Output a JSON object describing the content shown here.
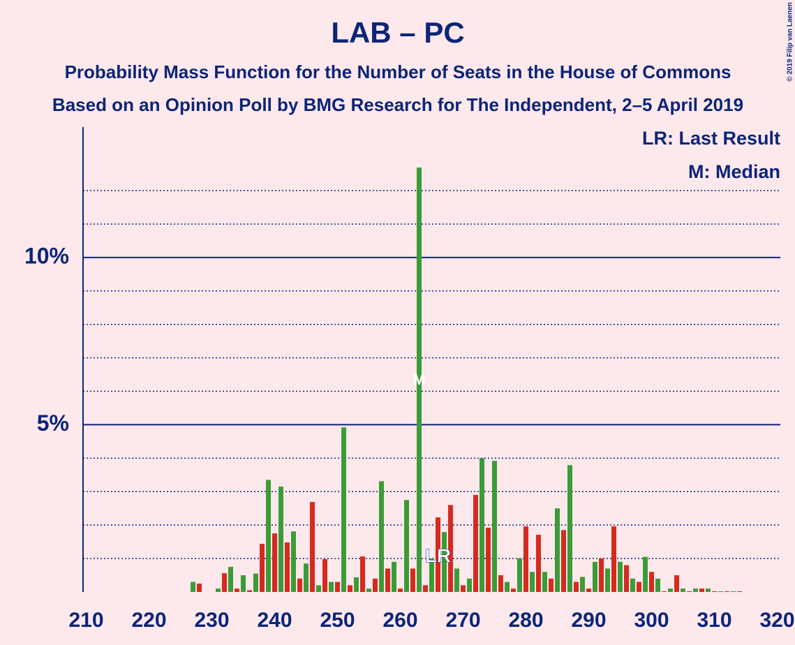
{
  "chart_data": {
    "type": "bar",
    "title": "LAB – PC",
    "subtitle": "Probability Mass Function for the Number of Seats in the House of Commons",
    "subtitle2": "Based on an Opinion Poll by BMG Research for The Independent, 2–5 April 2019",
    "copyright": "© 2019 Filip van Laenen",
    "legend": [
      "LR: Last Result",
      "M: Median"
    ],
    "last_result": 266,
    "last_result_label": "LR",
    "median": 263,
    "median_label": "M",
    "x": [
      210,
      211,
      212,
      213,
      214,
      215,
      216,
      217,
      218,
      219,
      220,
      221,
      222,
      223,
      224,
      225,
      226,
      227,
      228,
      229,
      230,
      231,
      232,
      233,
      234,
      235,
      236,
      237,
      238,
      239,
      240,
      241,
      242,
      243,
      244,
      245,
      246,
      247,
      248,
      249,
      250,
      251,
      252,
      253,
      254,
      255,
      256,
      257,
      258,
      259,
      260,
      261,
      262,
      263,
      264,
      265,
      266,
      267,
      268,
      269,
      270,
      271,
      272,
      273,
      274,
      275,
      276,
      277,
      278,
      279,
      280,
      281,
      282,
      283,
      284,
      285,
      286,
      287,
      288,
      289,
      290,
      291,
      292,
      293,
      294,
      295,
      296,
      297,
      298,
      299,
      300,
      301,
      302,
      303,
      304,
      305,
      306,
      307,
      308,
      309,
      310,
      311,
      312,
      313,
      314,
      315,
      316,
      317,
      318,
      319,
      320
    ],
    "values": [
      0,
      0,
      0,
      0,
      0,
      0,
      0,
      0,
      0,
      0,
      0,
      0,
      0,
      0,
      0,
      0,
      0,
      0.3,
      0.25,
      0,
      0,
      0.1,
      0.56,
      0.75,
      0.1,
      0.5,
      0.05,
      0.55,
      1.44,
      3.35,
      1.75,
      3.15,
      1.48,
      1.81,
      0.4,
      0.85,
      2.69,
      0.2,
      0.98,
      0.3,
      0.3,
      4.92,
      0.2,
      0.44,
      1.06,
      0.1,
      0.4,
      3.31,
      0.7,
      0.9,
      0.1,
      2.75,
      0.7,
      12.69,
      0.2,
      1.0,
      2.23,
      1.79,
      2.6,
      0.7,
      0.2,
      0.4,
      2.9,
      4.0,
      1.92,
      3.92,
      0.5,
      0.3,
      0.1,
      1.0,
      1.96,
      0.6,
      1.71,
      0.6,
      0.4,
      2.5,
      1.85,
      3.79,
      0.3,
      0.45,
      0.1,
      0.9,
      1.0,
      0.7,
      1.96,
      0.9,
      0.8,
      0.4,
      0.3,
      1.05,
      0.6,
      0.4,
      0.02,
      0.1,
      0.5,
      0.1,
      0.02,
      0.1,
      0.1,
      0.1,
      0.02,
      0.02,
      0.02,
      0.02,
      0.02,
      0,
      0,
      0,
      0,
      0,
      0
    ],
    "colors": [
      "#d62a20",
      "#3b9c37"
    ],
    "xlim": [
      209.5,
      320.5
    ],
    "xticks": [
      210,
      220,
      230,
      240,
      250,
      260,
      270,
      280,
      290,
      300,
      310,
      320
    ],
    "ylim": [
      0,
      13.9
    ],
    "yticks": [
      {
        "value": 5,
        "label": "5%"
      },
      {
        "value": 10,
        "label": "10%"
      }
    ],
    "minor_yticks": [
      1,
      2,
      3,
      4,
      6,
      7,
      8,
      9,
      11,
      12
    ]
  }
}
